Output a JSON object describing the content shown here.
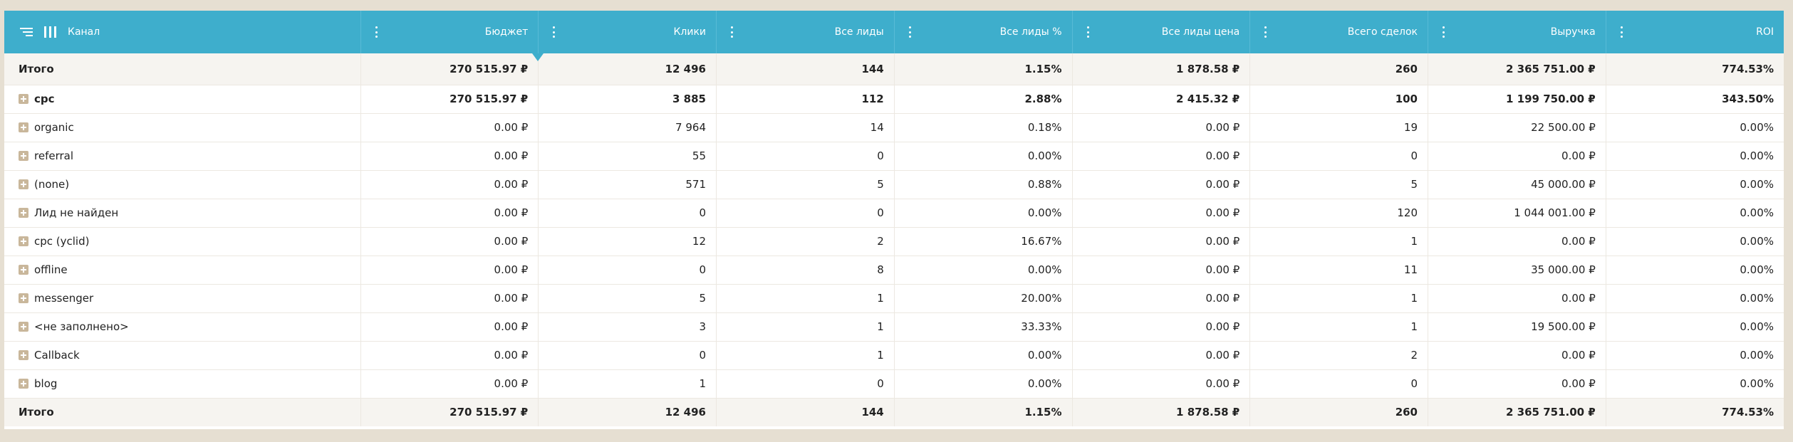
{
  "header": {
    "first_label": "Канал",
    "columns": [
      "Бюджет",
      "Клики",
      "Все лиды",
      "Все лиды %",
      "Все лиды цена",
      "Всего сделок",
      "Выручка",
      "ROI"
    ]
  },
  "total_top": {
    "label": "Итого",
    "values": [
      "270 515.97 ₽",
      "12 496",
      "144",
      "1.15%",
      "1 878.58 ₽",
      "260",
      "2 365 751.00 ₽",
      "774.53%"
    ]
  },
  "rows": [
    {
      "label": "cpc",
      "values": [
        "270 515.97 ₽",
        "3 885",
        "112",
        "2.88%",
        "2 415.32 ₽",
        "100",
        "1 199 750.00 ₽",
        "343.50%"
      ]
    },
    {
      "label": "organic",
      "values": [
        "0.00 ₽",
        "7 964",
        "14",
        "0.18%",
        "0.00 ₽",
        "19",
        "22 500.00 ₽",
        "0.00%"
      ]
    },
    {
      "label": "referral",
      "values": [
        "0.00 ₽",
        "55",
        "0",
        "0.00%",
        "0.00 ₽",
        "0",
        "0.00 ₽",
        "0.00%"
      ]
    },
    {
      "label": "(none)",
      "values": [
        "0.00 ₽",
        "571",
        "5",
        "0.88%",
        "0.00 ₽",
        "5",
        "45 000.00 ₽",
        "0.00%"
      ]
    },
    {
      "label": "Лид не найден",
      "values": [
        "0.00 ₽",
        "0",
        "0",
        "0.00%",
        "0.00 ₽",
        "120",
        "1 044 001.00 ₽",
        "0.00%"
      ]
    },
    {
      "label": "cpc (yclid)",
      "values": [
        "0.00 ₽",
        "12",
        "2",
        "16.67%",
        "0.00 ₽",
        "1",
        "0.00 ₽",
        "0.00%"
      ]
    },
    {
      "label": "offline",
      "values": [
        "0.00 ₽",
        "0",
        "8",
        "0.00%",
        "0.00 ₽",
        "11",
        "35 000.00 ₽",
        "0.00%"
      ]
    },
    {
      "label": "messenger",
      "values": [
        "0.00 ₽",
        "5",
        "1",
        "20.00%",
        "0.00 ₽",
        "1",
        "0.00 ₽",
        "0.00%"
      ]
    },
    {
      "label": "<не заполнено>",
      "values": [
        "0.00 ₽",
        "3",
        "1",
        "33.33%",
        "0.00 ₽",
        "1",
        "19 500.00 ₽",
        "0.00%"
      ]
    },
    {
      "label": "Callback",
      "values": [
        "0.00 ₽",
        "0",
        "1",
        "0.00%",
        "0.00 ₽",
        "2",
        "0.00 ₽",
        "0.00%"
      ]
    },
    {
      "label": "blog",
      "values": [
        "0.00 ₽",
        "1",
        "0",
        "0.00%",
        "0.00 ₽",
        "0",
        "0.00 ₽",
        "0.00%"
      ]
    }
  ],
  "total_bottom": {
    "label": "Итого",
    "values": [
      "270 515.97 ₽",
      "12 496",
      "144",
      "1.15%",
      "1 878.58 ₽",
      "260",
      "2 365 751.00 ₽",
      "774.53%"
    ]
  },
  "colors": {
    "header_bg": "#3eaecc",
    "page_bg": "#e6dfd2",
    "expand_icon": "#c9b79b"
  }
}
